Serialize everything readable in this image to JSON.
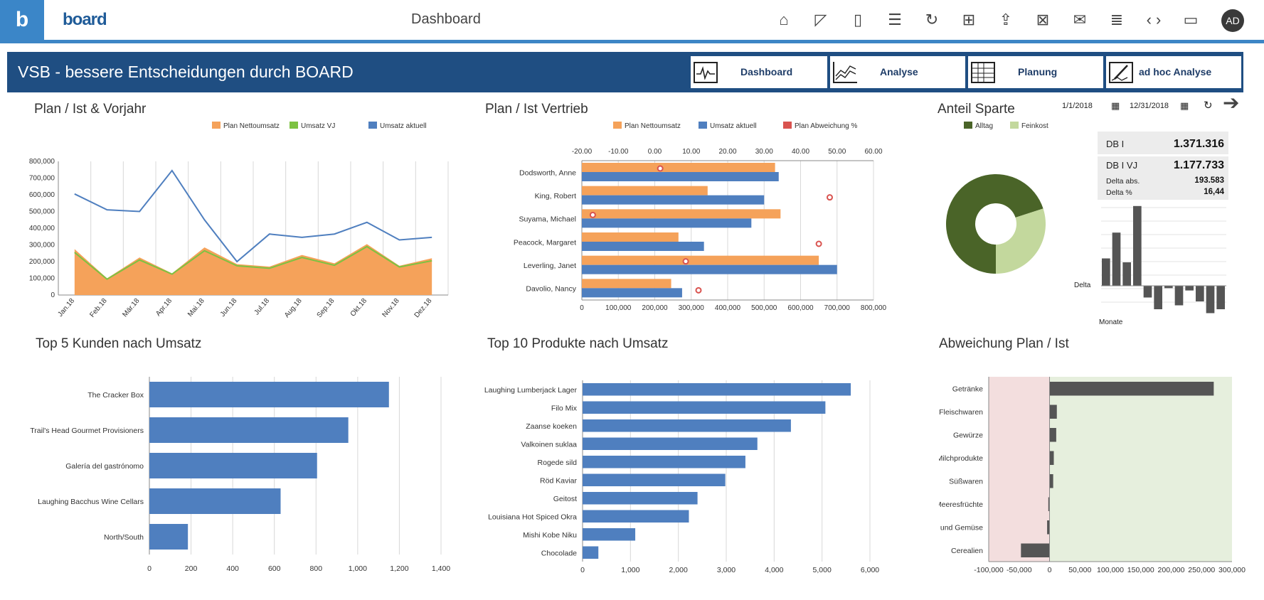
{
  "app": {
    "logo_letter": "b",
    "brand_name": "board",
    "page_title": "Dashboard",
    "avatar_initials": "AD"
  },
  "toolbar": {
    "icons": [
      "home-icon",
      "design-icon",
      "panel-icon",
      "layout-icon",
      "refresh-icon",
      "present-icon",
      "share-icon",
      "excel-icon",
      "add-mail-icon",
      "mail-list-icon",
      "code-icon",
      "comment-icon"
    ]
  },
  "banner": {
    "title": "VSB - bessere Entscheidungen durch BOARD",
    "nav": [
      {
        "label": "Dashboard",
        "icon": "dashboard-icon"
      },
      {
        "label": "Analyse",
        "icon": "analysis-icon"
      },
      {
        "label": "Planung",
        "icon": "planning-icon"
      },
      {
        "label": "ad hoc Analyse",
        "icon": "adhoc-icon"
      }
    ]
  },
  "colors": {
    "orange": "#f5a25a",
    "green": "#7dc242",
    "blue": "#4f7fbf",
    "red": "#d9534f",
    "dark_green": "#4a6428",
    "light_green": "#c3d89d",
    "dark_gray": "#555555",
    "banner": "#1f4e82",
    "accent": "#3d86c6"
  },
  "panels": {
    "plan_ist_vorjahr": "Plan / Ist & Vorjahr",
    "plan_ist_vertrieb": "Plan / Ist Vertrieb",
    "anteil_sparte": "Anteil Sparte",
    "top5_kunden": "Top 5 Kunden nach Umsatz",
    "top10_produkte": "Top 10 Produkte nach Umsatz",
    "abweichung": "Abweichung Plan / Ist"
  },
  "filters": {
    "date_from": "1/1/2018",
    "date_to": "12/31/2018"
  },
  "kpi": {
    "db1_label": "DB I",
    "db1_value": "1.371.316",
    "db1vj_label": "DB I VJ",
    "db1vj_value": "1.177.733",
    "delta_abs_label": "Delta abs.",
    "delta_abs_value": "193.583",
    "delta_pct_label": "Delta %",
    "delta_pct_value": "16,44"
  },
  "chart_data": [
    {
      "id": "plan_ist_vorjahr",
      "type": "area",
      "categories": [
        "Jan.18",
        "Feb.18",
        "Mär.18",
        "Apr.18",
        "Mai.18",
        "Jun.18",
        "Jul.18",
        "Aug.18",
        "Sep.18",
        "Okt.18",
        "Nov.18",
        "Dez.18"
      ],
      "series": [
        {
          "name": "Plan Nettoumsatz",
          "values": [
            275000,
            100000,
            225000,
            130000,
            285000,
            185000,
            170000,
            240000,
            190000,
            305000,
            175000,
            220000
          ]
        },
        {
          "name": "Umsatz VJ",
          "values": [
            255000,
            95000,
            210000,
            125000,
            265000,
            175000,
            160000,
            225000,
            178000,
            290000,
            168000,
            205000
          ]
        },
        {
          "name": "Umsatz aktuell",
          "values": [
            605000,
            510000,
            500000,
            745000,
            450000,
            200000,
            365000,
            345000,
            365000,
            435000,
            330000,
            345000
          ]
        }
      ],
      "yticks": [
        "0",
        "100,000",
        "200,000",
        "300,000",
        "400,000",
        "500,000",
        "600,000",
        "700,000",
        "800,000"
      ],
      "ylim": [
        0,
        800000
      ]
    },
    {
      "id": "plan_ist_vertrieb",
      "type": "bar",
      "categories": [
        "Dodsworth, Anne",
        "King, Robert",
        "Suyama, Michael",
        "Peacock, Margaret",
        "Leverling, Janet",
        "Davolio, Nancy"
      ],
      "series": [
        {
          "name": "Plan Nettoumsatz",
          "values": [
            530000,
            345000,
            545000,
            265000,
            650000,
            245000
          ]
        },
        {
          "name": "Umsatz aktuell",
          "values": [
            540000,
            500000,
            465000,
            335000,
            700000,
            275000
          ]
        },
        {
          "name": "Plan Abweichung %",
          "values": [
            1.5,
            48,
            -17,
            45,
            8.5,
            12
          ]
        }
      ],
      "xticks": [
        "0",
        "100,000",
        "200,000",
        "300,000",
        "400,000",
        "500,000",
        "600,000",
        "700,000",
        "800,000"
      ],
      "xlim": [
        0,
        800000
      ],
      "x2ticks": [
        "-20.00",
        "-10.00",
        "0.00",
        "10.00",
        "20.00",
        "30.00",
        "40.00",
        "50.00",
        "60.00"
      ],
      "x2lim": [
        -20,
        60
      ]
    },
    {
      "id": "anteil_sparte",
      "type": "pie",
      "labels": [
        "Alltag",
        "Feinkost"
      ],
      "values": [
        70,
        30
      ]
    },
    {
      "id": "delta_monate",
      "type": "bar",
      "ylabel": "Delta",
      "xlabel": "Monate",
      "values": [
        35,
        68,
        30,
        102,
        -15,
        -30,
        -3,
        -25,
        -6,
        -20,
        -35,
        -30
      ]
    },
    {
      "id": "top5_kunden",
      "type": "bar",
      "categories": [
        "The Cracker Box",
        "Trail's Head Gourmet Provisioners",
        "Galería del gastrónomo",
        "Laughing Bacchus Wine Cellars",
        "North/South"
      ],
      "values": [
        1150,
        955,
        805,
        630,
        185
      ],
      "xticks": [
        "0",
        "200",
        "400",
        "600",
        "800",
        "1,000",
        "1,200",
        "1,400"
      ],
      "xlim": [
        0,
        1400
      ]
    },
    {
      "id": "top10_produkte",
      "type": "bar",
      "categories": [
        "Laughing Lumberjack Lager",
        "Filo Mix",
        "Zaanse koeken",
        "Valkoinen suklaa",
        "Rogede sild",
        "Röd Kaviar",
        "Geitost",
        "Louisiana Hot Spiced Okra",
        "Mishi Kobe Niku",
        "Chocolade"
      ],
      "values": [
        5600,
        5070,
        4350,
        3650,
        3400,
        2980,
        2400,
        2220,
        1100,
        330
      ],
      "xticks": [
        "0",
        "1,000",
        "2,000",
        "3,000",
        "4,000",
        "5,000",
        "6,000"
      ],
      "xlim": [
        0,
        6000
      ]
    },
    {
      "id": "abweichung",
      "type": "bar",
      "categories": [
        "Getränke",
        "Fleischwaren",
        "Gewürze",
        "Milchprodukte",
        "Süßwaren",
        "Meeresfrüchte",
        "Obst und Gemüse",
        "Cerealien"
      ],
      "values": [
        270000,
        12000,
        11000,
        7000,
        6000,
        -2000,
        -4000,
        -47000
      ],
      "xticks": [
        "-100,000",
        "-50,000",
        "0",
        "50,000",
        "100,000",
        "150,000",
        "200,000",
        "250,000",
        "300,000"
      ],
      "xlim": [
        -100000,
        300000
      ]
    }
  ]
}
